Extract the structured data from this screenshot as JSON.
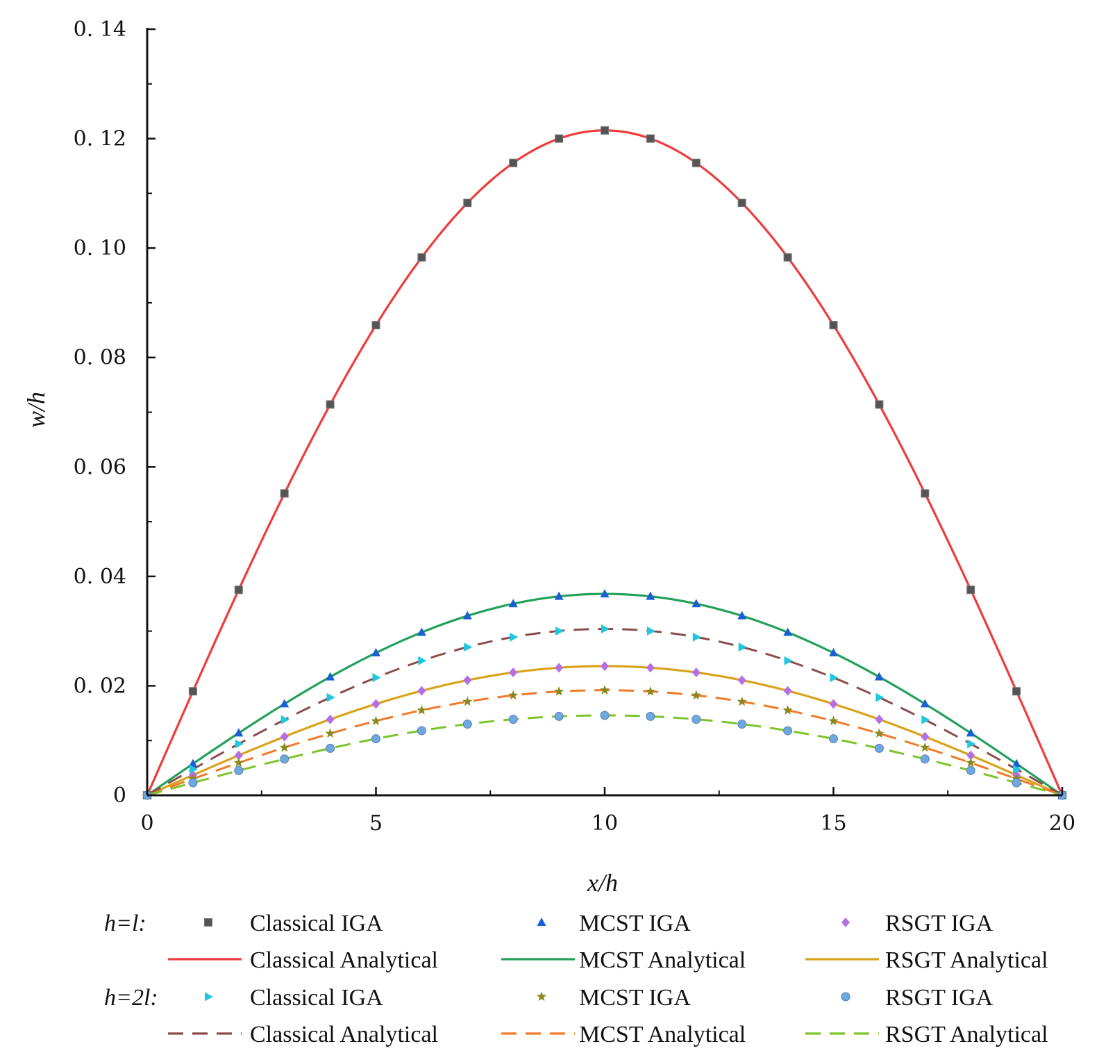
{
  "chart_data": {
    "type": "line",
    "title": "",
    "xlabel": "x/h",
    "ylabel": "w/h",
    "xlim": [
      0,
      20
    ],
    "ylim": [
      0,
      0.14
    ],
    "x_ticks": [
      0,
      5,
      10,
      15,
      20
    ],
    "x_tick_labels": [
      "0",
      "5",
      "10",
      "15",
      "20"
    ],
    "y_ticks": [
      0,
      0.02,
      0.04,
      0.06,
      0.08,
      0.1,
      0.12,
      0.14
    ],
    "y_tick_labels": [
      "0",
      "0. 02",
      "0. 04",
      "0. 06",
      "0. 08",
      "0. 10",
      "0. 12",
      "0. 14"
    ],
    "grid": false,
    "legend_position": "bottom",
    "legend_groups": [
      {
        "label": "h=l:"
      },
      {
        "label": "h=2l:"
      }
    ],
    "x": [
      0,
      1,
      2,
      3,
      4,
      5,
      6,
      7,
      8,
      9,
      10,
      11,
      12,
      13,
      14,
      15,
      16,
      17,
      18,
      19,
      20
    ],
    "series": [
      {
        "name": "Classical IGA",
        "group": 0,
        "kind": "markers",
        "marker": "square",
        "color": "#555555",
        "peak": 0.1215
      },
      {
        "name": "MCST IGA",
        "group": 0,
        "kind": "markers",
        "marker": "triangle-up",
        "color": "#1a5fd6",
        "peak": 0.0368
      },
      {
        "name": "RSGT IGA",
        "group": 0,
        "kind": "markers",
        "marker": "diamond",
        "color": "#b46ee8",
        "peak": 0.0236
      },
      {
        "name": "Classical Analytical",
        "group": 0,
        "kind": "line",
        "dash": "solid",
        "color": "#ef3b3b",
        "peak": 0.1215
      },
      {
        "name": "MCST Analytical",
        "group": 0,
        "kind": "line",
        "dash": "solid",
        "color": "#22a05a",
        "peak": 0.0368
      },
      {
        "name": "RSGT Analytical",
        "group": 0,
        "kind": "line",
        "dash": "solid",
        "color": "#d9a21b",
        "peak": 0.0236
      },
      {
        "name": "Classical IGA",
        "group": 1,
        "kind": "markers",
        "marker": "triangle-right",
        "color": "#1ec8e0",
        "peak": 0.0304
      },
      {
        "name": "MCST IGA",
        "group": 1,
        "kind": "markers",
        "marker": "star",
        "color": "#8a8a1c",
        "peak": 0.0192
      },
      {
        "name": "RSGT IGA",
        "group": 1,
        "kind": "markers",
        "marker": "circle",
        "color": "#6ea8e0",
        "peak": 0.0146
      },
      {
        "name": "Classical Analytical",
        "group": 1,
        "kind": "line",
        "dash": "dashed",
        "color": "#8b4c4c",
        "peak": 0.0304
      },
      {
        "name": "MCST Analytical",
        "group": 1,
        "kind": "line",
        "dash": "dashed",
        "color": "#f07a2a",
        "peak": 0.0192
      },
      {
        "name": "RSGT Analytical",
        "group": 1,
        "kind": "line",
        "dash": "dashed",
        "color": "#7cc42a",
        "peak": 0.0146
      }
    ]
  }
}
